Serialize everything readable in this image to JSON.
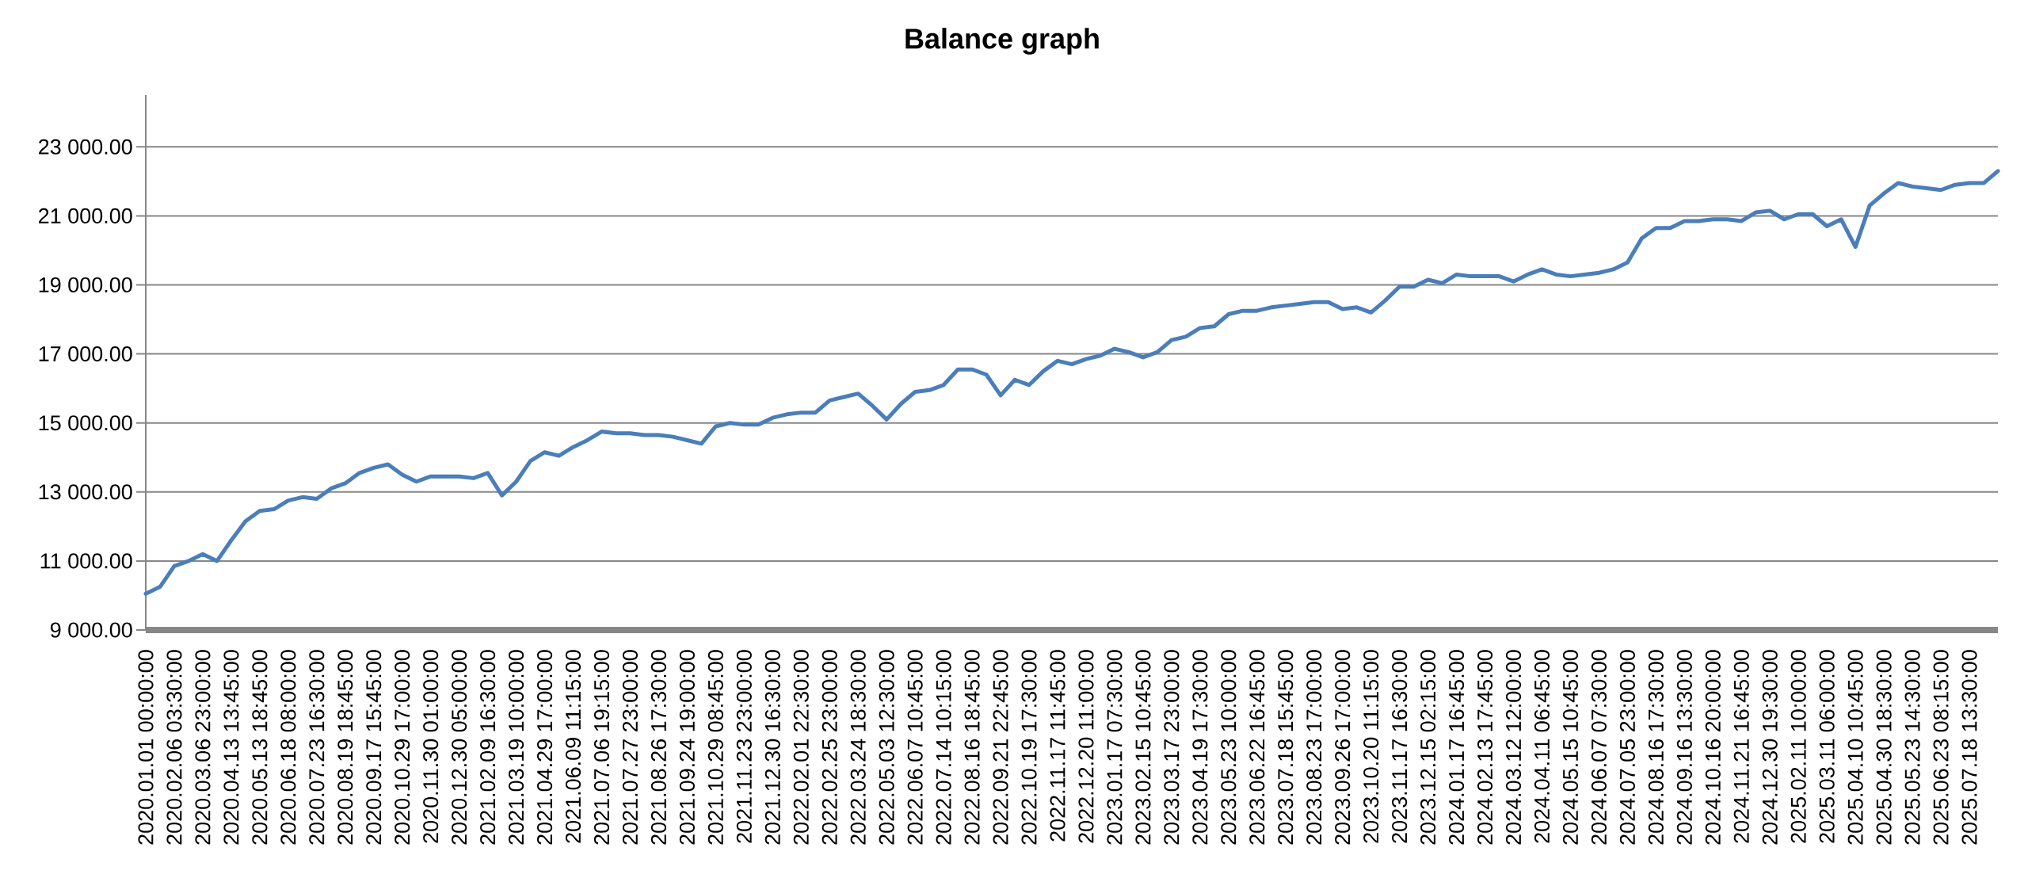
{
  "chart_data": {
    "type": "line",
    "title": "Balance graph",
    "categories": [
      "2020.01.01 00:00:00",
      null,
      "2020.02.06 03:30:00",
      null,
      "2020.03.06 23:00:00",
      null,
      "2020.04.13 13:45:00",
      null,
      "2020.05.13 18:45:00",
      null,
      "2020.06.18 08:00:00",
      null,
      "2020.07.23 16:30:00",
      null,
      "2020.08.19 18:45:00",
      null,
      "2020.09.17 15:45:00",
      null,
      "2020.10.29 17:00:00",
      null,
      "2020.11.30 01:00:00",
      null,
      "2020.12.30 05:00:00",
      null,
      "2021.02.09 16:30:00",
      null,
      "2021.03.19 10:00:00",
      null,
      "2021.04.29 17:00:00",
      null,
      "2021.06.09 11:15:00",
      null,
      "2021.07.06 19:15:00",
      null,
      "2021.07.27 23:00:00",
      null,
      "2021.08.26 17:30:00",
      null,
      "2021.09.24 19:00:00",
      null,
      "2021.10.29 08:45:00",
      null,
      "2021.11.23 23:00:00",
      null,
      "2021.12.30 16:30:00",
      null,
      "2022.02.01 22:30:00",
      null,
      "2022.02.25 23:00:00",
      null,
      "2022.03.24 18:30:00",
      null,
      "2022.05.03 12:30:00",
      null,
      "2022.06.07 10:45:00",
      null,
      "2022.07.14 10:15:00",
      null,
      "2022.08.16 18:45:00",
      null,
      "2022.09.21 22:45:00",
      null,
      "2022.10.19 17:30:00",
      null,
      "2022.11.17 11:45:00",
      null,
      "2022.12.20 11:00:00",
      null,
      "2023.01.17 07:30:00",
      null,
      "2023.02.15 10:45:00",
      null,
      "2023.03.17 23:00:00",
      null,
      "2023.04.19 17:30:00",
      null,
      "2023.05.23 10:00:00",
      null,
      "2023.06.22 16:45:00",
      null,
      "2023.07.18 15:45:00",
      null,
      "2023.08.23 17:00:00",
      null,
      "2023.09.26 17:00:00",
      null,
      "2023.10.20 11:15:00",
      null,
      "2023.11.17 16:30:00",
      null,
      "2023.12.15 02:15:00",
      null,
      "2024.01.17 16:45:00",
      null,
      "2024.02.13 17:45:00",
      null,
      "2024.03.12 12:00:00",
      null,
      "2024.04.11 06:45:00",
      null,
      "2024.05.15 10:45:00",
      null,
      "2024.06.07 07:30:00",
      null,
      "2024.07.05 23:00:00",
      null,
      "2024.08.16 17:30:00",
      null,
      "2024.09.16 13:30:00",
      null,
      "2024.10.16 20:00:00",
      null,
      "2024.11.21 16:45:00",
      null,
      "2024.12.30 19:30:00",
      null,
      "2025.02.11 10:00:00",
      null,
      "2025.03.11 06:00:00",
      null,
      "2025.04.10 10:45:00",
      null,
      "2025.04.30 18:30:00",
      null,
      "2025.05.23 14:30:00",
      null,
      "2025.06.23 08:15:00",
      null,
      "2025.07.18 13:30:00",
      null,
      null
    ],
    "values": [
      10050,
      10250,
      10850,
      11000,
      11200,
      11000,
      11600,
      12150,
      12450,
      12500,
      12750,
      12850,
      12800,
      13100,
      13250,
      13550,
      13700,
      13800,
      13500,
      13300,
      13450,
      13450,
      13450,
      13400,
      13550,
      12900,
      13300,
      13900,
      14150,
      14050,
      14300,
      14500,
      14750,
      14700,
      14700,
      14650,
      14650,
      14600,
      14500,
      14400,
      14900,
      15000,
      14950,
      14950,
      15150,
      15250,
      15300,
      15300,
      15650,
      15750,
      15850,
      15500,
      15100,
      15550,
      15900,
      15950,
      16100,
      16550,
      16550,
      16400,
      15800,
      16250,
      16100,
      16500,
      16800,
      16700,
      16850,
      16950,
      17150,
      17050,
      16900,
      17050,
      17400,
      17500,
      17750,
      17800,
      18150,
      18250,
      18250,
      18350,
      18400,
      18450,
      18500,
      18500,
      18300,
      18350,
      18200,
      18550,
      18950,
      18950,
      19150,
      19050,
      19300,
      19250,
      19250,
      19250,
      19100,
      19300,
      19450,
      19300,
      19250,
      19300,
      19350,
      19450,
      19650,
      20350,
      20650,
      20650,
      20850,
      20850,
      20900,
      20900,
      20850,
      21100,
      21150,
      20900,
      21050,
      21050,
      20700,
      20900,
      20100,
      21300,
      21650,
      21950,
      21850,
      21800,
      21750,
      21900,
      21950,
      21950,
      22300
    ],
    "color": "#4a7ebb",
    "ylim": [
      9000,
      24500
    ],
    "yticks": [
      {
        "value": 9000,
        "label": "9 000.00"
      },
      {
        "value": 11000,
        "label": "11 000.00"
      },
      {
        "value": 13000,
        "label": "13 000.00"
      },
      {
        "value": 15000,
        "label": "15 000.00"
      },
      {
        "value": 17000,
        "label": "17 000.00"
      },
      {
        "value": 19000,
        "label": "19 000.00"
      },
      {
        "value": 21000,
        "label": "21 000.00"
      },
      {
        "value": 23000,
        "label": "23 000.00"
      }
    ],
    "grid": "y"
  }
}
